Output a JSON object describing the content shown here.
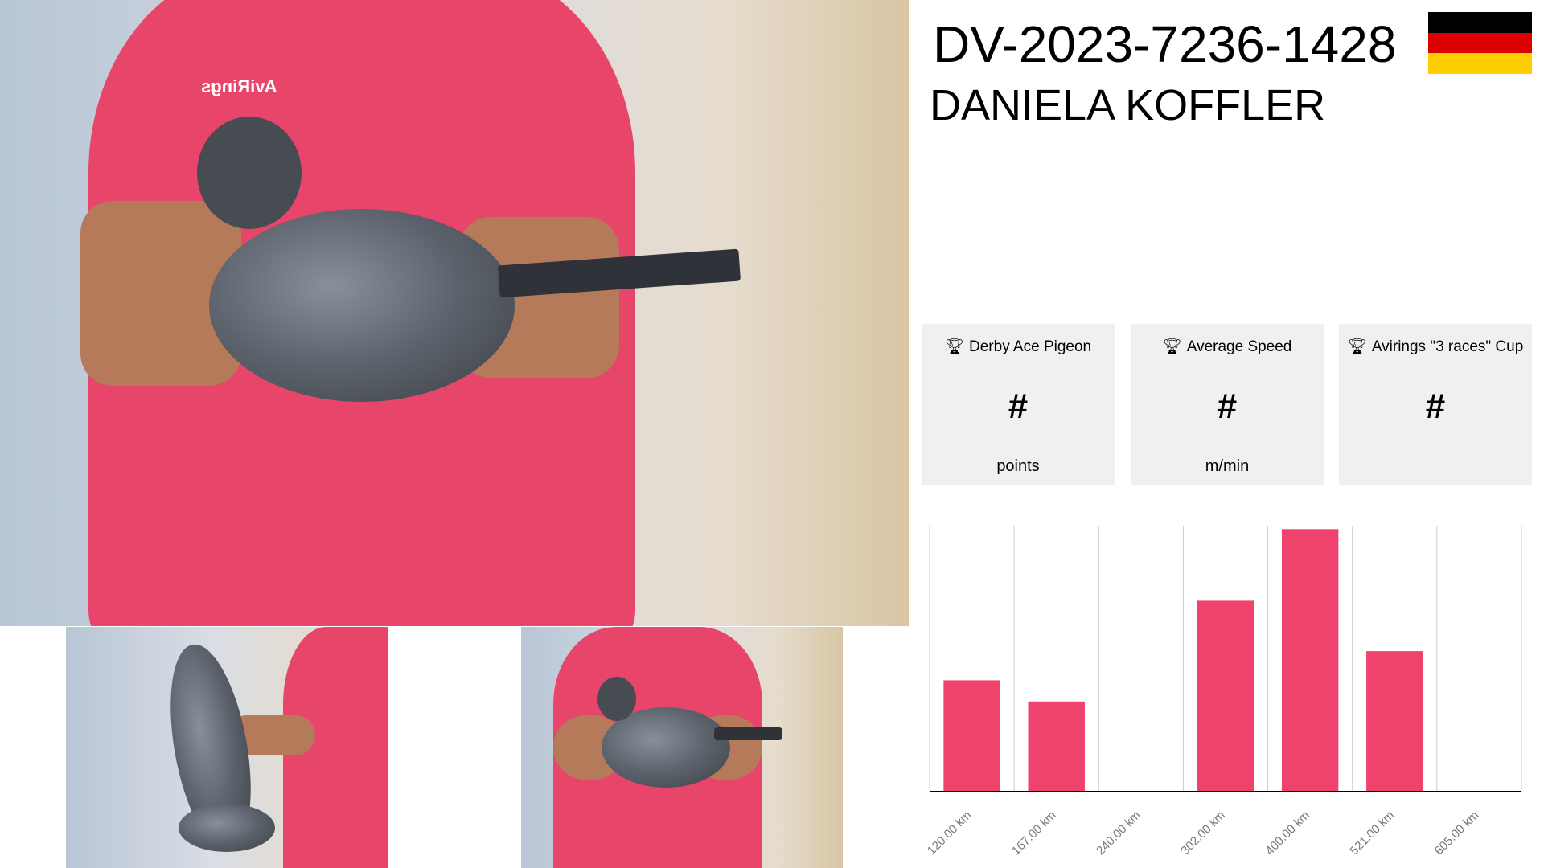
{
  "pigeon": {
    "ring": "DV-2023-7236-1428",
    "owner": "DANIELA KOFFLER",
    "country_flag": "germany-flag",
    "flag_colors": [
      "#000000",
      "#dd0000",
      "#ffce00"
    ]
  },
  "photos": {
    "shirt_logo": "AviRings"
  },
  "cards": [
    {
      "icon": "trophy-icon",
      "title": "Derby Ace Pigeon",
      "value": "#",
      "unit": "points"
    },
    {
      "icon": "trophy-icon",
      "title": "Average Speed",
      "value": "#",
      "unit": "m/min"
    },
    {
      "icon": "trophy-icon",
      "title": "Avirings \"3 races\" Cup",
      "value": "#",
      "unit": ""
    }
  ],
  "chart_data": {
    "type": "bar",
    "categories": [
      "120.00 km",
      "167.00 km",
      "240.00 km",
      "302.00 km",
      "400.00 km",
      "521.00 km",
      "605.00 km"
    ],
    "values": [
      0.42,
      0.34,
      0,
      0.72,
      0.99,
      0.53,
      0
    ],
    "ylim": [
      0,
      1
    ],
    "grid": "vertical",
    "bar_color": "#ef436e",
    "title": "",
    "xlabel": "",
    "ylabel": ""
  }
}
